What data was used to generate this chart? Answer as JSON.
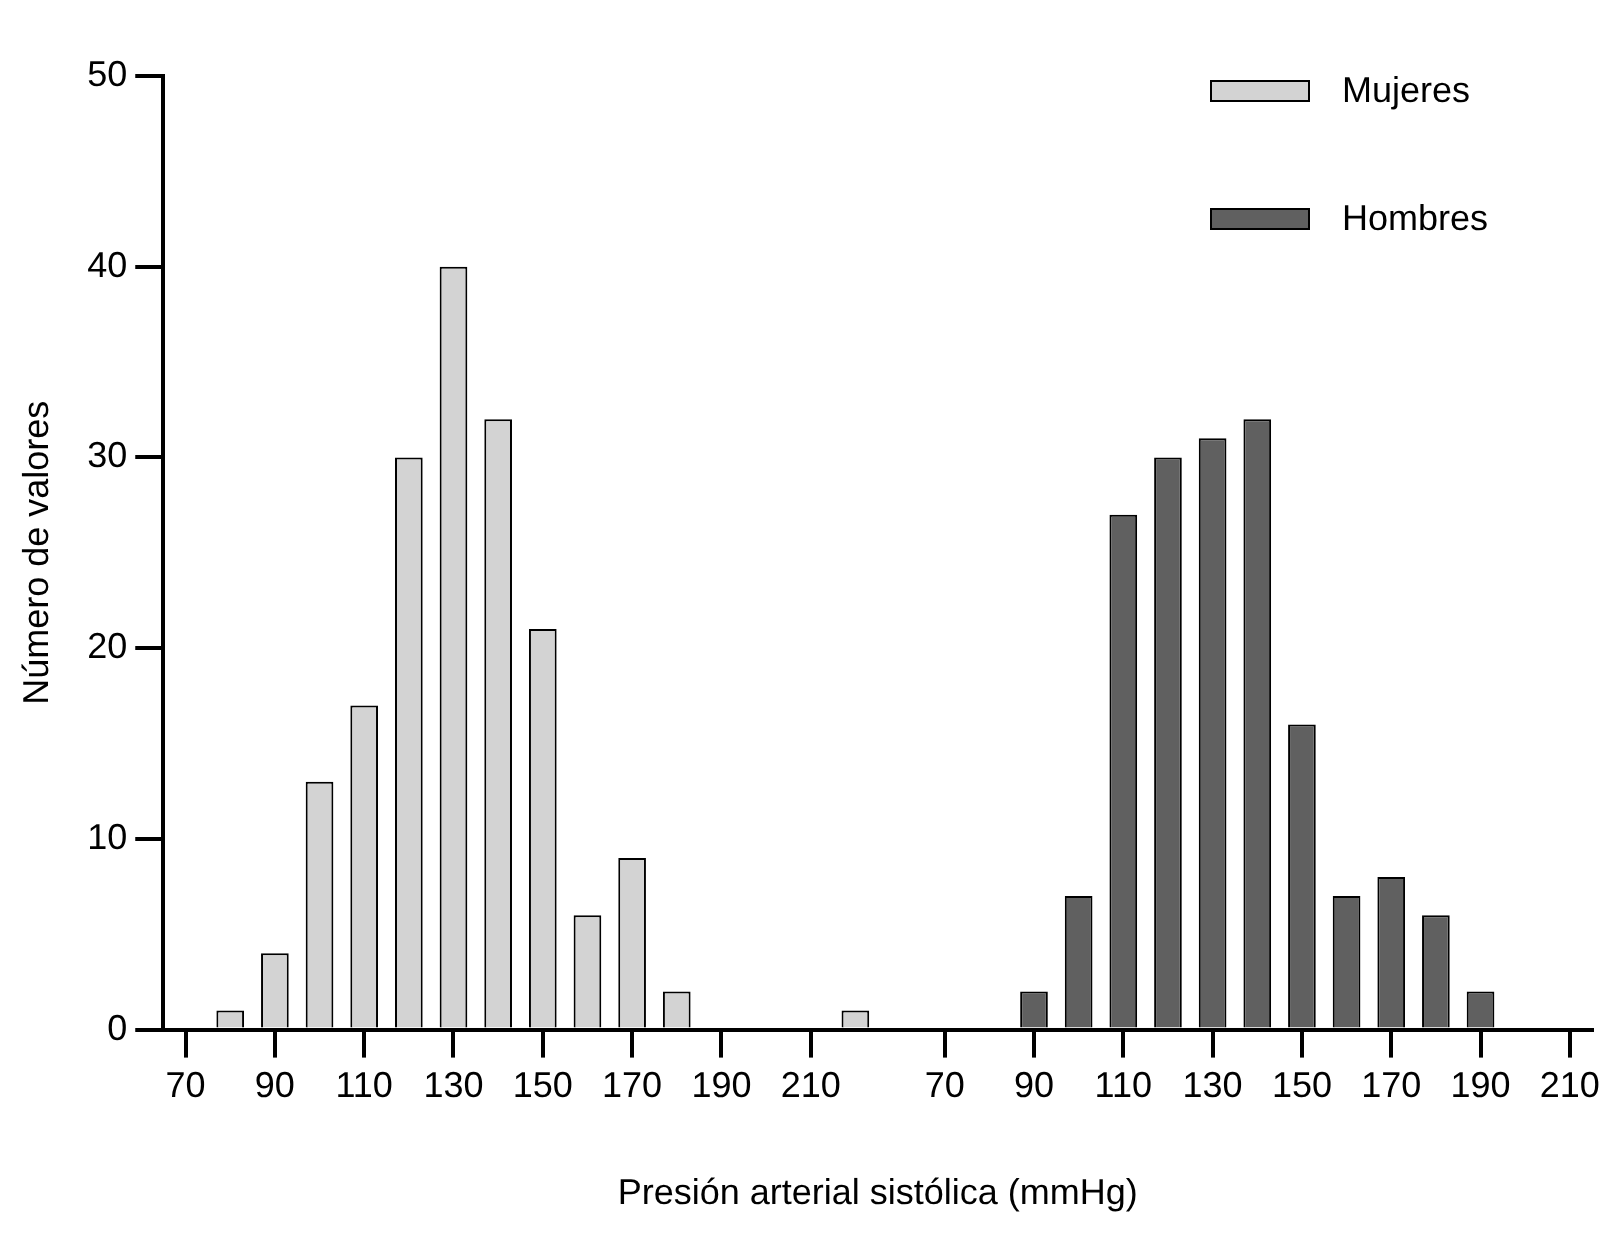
{
  "chart_data": {
    "type": "bar",
    "xlabel": "Presión arterial sistólica (mmHg)",
    "ylabel": "Número de valores",
    "categories": [
      "70",
      null,
      "90",
      null,
      "110",
      null,
      "130",
      null,
      "150",
      null,
      "170",
      null,
      "190",
      null,
      "210",
      null,
      null,
      "70",
      null,
      "90",
      null,
      "110",
      null,
      "130",
      null,
      "150",
      null,
      "170",
      null,
      "190",
      null,
      "210"
    ],
    "series": [
      {
        "name": "Mujeres",
        "color": "#d3d3d3",
        "values": [
          null,
          1,
          4,
          13,
          17,
          30,
          40,
          32,
          21,
          6,
          9,
          2,
          null,
          null,
          null,
          1,
          null,
          null,
          null,
          null,
          null,
          null,
          null,
          null,
          null,
          null,
          null,
          null,
          null,
          null,
          null,
          null
        ]
      },
      {
        "name": "Hombres",
        "color": "#606060",
        "values": [
          null,
          null,
          null,
          null,
          null,
          null,
          null,
          null,
          null,
          null,
          null,
          null,
          null,
          null,
          null,
          null,
          null,
          null,
          null,
          2,
          7,
          27,
          30,
          31,
          32,
          16,
          7,
          8,
          6,
          2,
          null,
          null
        ]
      }
    ],
    "ylim": [
      0,
      50
    ],
    "yticks": [
      0,
      10,
      20,
      30,
      40,
      50
    ],
    "grid": false,
    "legend": "top right"
  }
}
